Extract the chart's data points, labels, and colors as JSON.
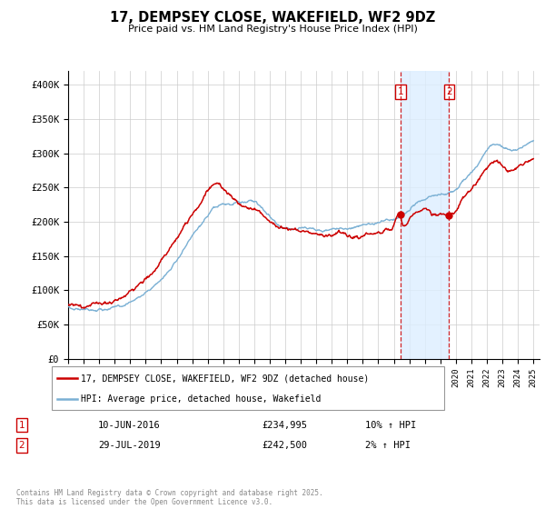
{
  "title": "17, DEMPSEY CLOSE, WAKEFIELD, WF2 9DZ",
  "subtitle": "Price paid vs. HM Land Registry's House Price Index (HPI)",
  "ylim": [
    0,
    420000
  ],
  "yticks": [
    0,
    50000,
    100000,
    150000,
    200000,
    250000,
    300000,
    350000,
    400000
  ],
  "ytick_labels": [
    "£0",
    "£50K",
    "£100K",
    "£150K",
    "£200K",
    "£250K",
    "£300K",
    "£350K",
    "£400K"
  ],
  "line1_color": "#cc0000",
  "line2_color": "#7ab0d4",
  "shade_color": "#ddeeff",
  "marker1_year": 2016.44,
  "marker2_year": 2019.57,
  "vline_color": "#cc0000",
  "legend1_label": "17, DEMPSEY CLOSE, WAKEFIELD, WF2 9DZ (detached house)",
  "legend2_label": "HPI: Average price, detached house, Wakefield",
  "ann1_date": "10-JUN-2016",
  "ann1_price": "£234,995",
  "ann1_hpi": "10% ↑ HPI",
  "ann2_date": "29-JUL-2019",
  "ann2_price": "£242,500",
  "ann2_hpi": "2% ↑ HPI",
  "footer": "Contains HM Land Registry data © Crown copyright and database right 2025.\nThis data is licensed under the Open Government Licence v3.0.",
  "background_color": "#ffffff",
  "grid_color": "#cccccc",
  "hpi_points": [
    [
      1995.0,
      75000
    ],
    [
      1995.5,
      73000
    ],
    [
      1996.0,
      74000
    ],
    [
      1996.5,
      76000
    ],
    [
      1997.0,
      79000
    ],
    [
      1997.5,
      78000
    ],
    [
      1998.0,
      80000
    ],
    [
      1998.5,
      84000
    ],
    [
      1999.0,
      89000
    ],
    [
      1999.5,
      95000
    ],
    [
      2000.0,
      103000
    ],
    [
      2000.5,
      112000
    ],
    [
      2001.0,
      122000
    ],
    [
      2001.5,
      135000
    ],
    [
      2002.0,
      152000
    ],
    [
      2002.5,
      170000
    ],
    [
      2003.0,
      185000
    ],
    [
      2003.5,
      198000
    ],
    [
      2004.0,
      210000
    ],
    [
      2004.5,
      218000
    ],
    [
      2005.0,
      220000
    ],
    [
      2005.5,
      218000
    ],
    [
      2006.0,
      220000
    ],
    [
      2006.5,
      222000
    ],
    [
      2007.0,
      225000
    ],
    [
      2007.5,
      215000
    ],
    [
      2008.0,
      205000
    ],
    [
      2008.5,
      195000
    ],
    [
      2009.0,
      188000
    ],
    [
      2009.5,
      190000
    ],
    [
      2010.0,
      193000
    ],
    [
      2010.5,
      190000
    ],
    [
      2011.0,
      188000
    ],
    [
      2011.5,
      185000
    ],
    [
      2012.0,
      185000
    ],
    [
      2012.5,
      187000
    ],
    [
      2013.0,
      188000
    ],
    [
      2013.5,
      190000
    ],
    [
      2014.0,
      193000
    ],
    [
      2014.5,
      196000
    ],
    [
      2015.0,
      198000
    ],
    [
      2015.5,
      200000
    ],
    [
      2016.0,
      205000
    ],
    [
      2016.5,
      210000
    ],
    [
      2017.0,
      218000
    ],
    [
      2017.5,
      225000
    ],
    [
      2018.0,
      228000
    ],
    [
      2018.5,
      230000
    ],
    [
      2019.0,
      232000
    ],
    [
      2019.5,
      235000
    ],
    [
      2020.0,
      238000
    ],
    [
      2020.5,
      248000
    ],
    [
      2021.0,
      262000
    ],
    [
      2021.5,
      278000
    ],
    [
      2022.0,
      295000
    ],
    [
      2022.5,
      305000
    ],
    [
      2023.0,
      302000
    ],
    [
      2023.5,
      298000
    ],
    [
      2024.0,
      300000
    ],
    [
      2024.5,
      305000
    ],
    [
      2025.0,
      312000
    ]
  ],
  "red_points": [
    [
      1995.0,
      80000
    ],
    [
      1995.5,
      82000
    ],
    [
      1996.0,
      82000
    ],
    [
      1996.5,
      84000
    ],
    [
      1997.0,
      86000
    ],
    [
      1997.5,
      87000
    ],
    [
      1998.0,
      89000
    ],
    [
      1998.5,
      93000
    ],
    [
      1999.0,
      99000
    ],
    [
      1999.5,
      104000
    ],
    [
      2000.0,
      113000
    ],
    [
      2000.5,
      124000
    ],
    [
      2001.0,
      136000
    ],
    [
      2001.5,
      152000
    ],
    [
      2002.0,
      170000
    ],
    [
      2002.5,
      190000
    ],
    [
      2003.0,
      207000
    ],
    [
      2003.5,
      220000
    ],
    [
      2004.0,
      235000
    ],
    [
      2004.5,
      248000
    ],
    [
      2005.0,
      245000
    ],
    [
      2005.5,
      235000
    ],
    [
      2006.0,
      228000
    ],
    [
      2006.5,
      224000
    ],
    [
      2007.0,
      220000
    ],
    [
      2007.5,
      215000
    ],
    [
      2008.0,
      210000
    ],
    [
      2008.5,
      205000
    ],
    [
      2009.0,
      200000
    ],
    [
      2009.5,
      200000
    ],
    [
      2010.0,
      202000
    ],
    [
      2010.5,
      200000
    ],
    [
      2011.0,
      198000
    ],
    [
      2011.5,
      197000
    ],
    [
      2012.0,
      197000
    ],
    [
      2012.5,
      200000
    ],
    [
      2013.0,
      202000
    ],
    [
      2013.5,
      205000
    ],
    [
      2014.0,
      208000
    ],
    [
      2014.5,
      212000
    ],
    [
      2015.0,
      215000
    ],
    [
      2015.5,
      218000
    ],
    [
      2016.0,
      222000
    ],
    [
      2016.44,
      234995
    ],
    [
      2016.5,
      230000
    ],
    [
      2017.0,
      238000
    ],
    [
      2017.5,
      248000
    ],
    [
      2018.0,
      252000
    ],
    [
      2018.5,
      248000
    ],
    [
      2019.0,
      245000
    ],
    [
      2019.57,
      242500
    ],
    [
      2020.0,
      248000
    ],
    [
      2020.5,
      260000
    ],
    [
      2021.0,
      275000
    ],
    [
      2021.5,
      292000
    ],
    [
      2022.0,
      308000
    ],
    [
      2022.5,
      318000
    ],
    [
      2023.0,
      310000
    ],
    [
      2023.5,
      305000
    ],
    [
      2024.0,
      308000
    ],
    [
      2024.5,
      315000
    ],
    [
      2025.0,
      320000
    ]
  ]
}
